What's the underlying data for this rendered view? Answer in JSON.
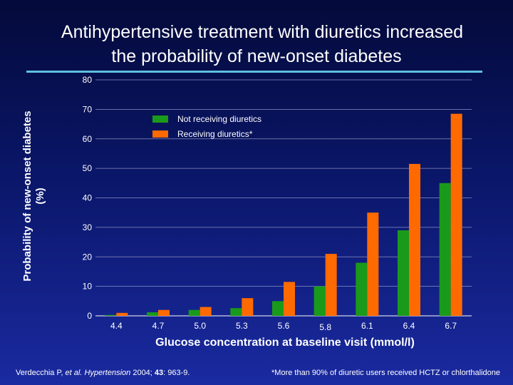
{
  "title": {
    "line1": "Antihypertensive treatment with diuretics increased",
    "line2": "the probability of new-onset diabetes"
  },
  "citation": {
    "authors": "Verdecchia P, ",
    "etal": "et al.",
    "journal": "Hypertension",
    "year": "2004; ",
    "volume": "43",
    "pages": ": 963-9."
  },
  "footnote": "*More than 90% of diuretic users received HCTZ or chlorthalidone",
  "colors": {
    "accent_rule": "#5fc0e0",
    "series_green": "#1a9a1a",
    "series_orange": "#ff6a00",
    "grid": "#8a8fc0"
  },
  "chart_data": {
    "type": "bar",
    "title": "",
    "xlabel": "Glucose concentration at baseline visit (mmol/l)",
    "ylabel": "Probability of new-onset diabetes (%)",
    "ylim": [
      0,
      80
    ],
    "yticks": [
      0,
      10,
      20,
      30,
      40,
      50,
      60,
      70,
      80
    ],
    "grid": true,
    "legend_position": "top-left",
    "categories": [
      "4.4",
      "4.7",
      "5.0",
      "5.3",
      "5.6",
      "5.8",
      "6.1",
      "6.4",
      "6.7"
    ],
    "series": [
      {
        "name": "Not receiving diuretics",
        "color": "#1a9a1a",
        "values": [
          0.3,
          1.2,
          2.0,
          2.6,
          5.0,
          10.0,
          18.0,
          29.0,
          45.0
        ]
      },
      {
        "name": "Receiving diuretics*",
        "color": "#ff6a00",
        "values": [
          1.0,
          2.0,
          3.0,
          6.0,
          11.5,
          21.0,
          35.0,
          51.5,
          68.5
        ]
      }
    ]
  }
}
